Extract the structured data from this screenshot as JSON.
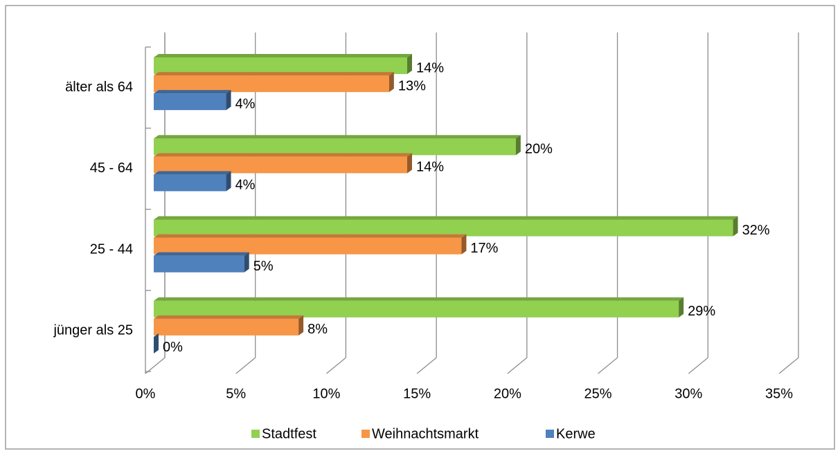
{
  "chart_data": {
    "type": "bar",
    "orientation": "horizontal",
    "three_d": true,
    "categories": [
      "jünger als 25",
      "25 - 44",
      "45 - 64",
      "älter als 64"
    ],
    "series": [
      {
        "name": "Stadtfest",
        "color": "#92d050",
        "values": [
          29,
          32,
          20,
          14
        ],
        "value_labels": [
          "29%",
          "32%",
          "20%",
          "14%"
        ]
      },
      {
        "name": "Weihnachtsmarkt",
        "color": "#f79646",
        "values": [
          8,
          17,
          14,
          13
        ],
        "value_labels": [
          "8%",
          "17%",
          "14%",
          "13%"
        ]
      },
      {
        "name": "Kerwe",
        "color": "#4f81bd",
        "values": [
          0,
          5,
          4,
          4
        ],
        "value_labels": [
          "0%",
          "5%",
          "4%",
          "4%"
        ]
      }
    ],
    "xlim": [
      0,
      35
    ],
    "xticks": [
      {
        "value": 0,
        "label": "0%"
      },
      {
        "value": 5,
        "label": "5%"
      },
      {
        "value": 10,
        "label": "10%"
      },
      {
        "value": 15,
        "label": "15%"
      },
      {
        "value": 20,
        "label": "20%"
      },
      {
        "value": 25,
        "label": "25%"
      },
      {
        "value": 30,
        "label": "30%"
      },
      {
        "value": 35,
        "label": "35%"
      }
    ],
    "grid": true,
    "legend": "bottom"
  }
}
